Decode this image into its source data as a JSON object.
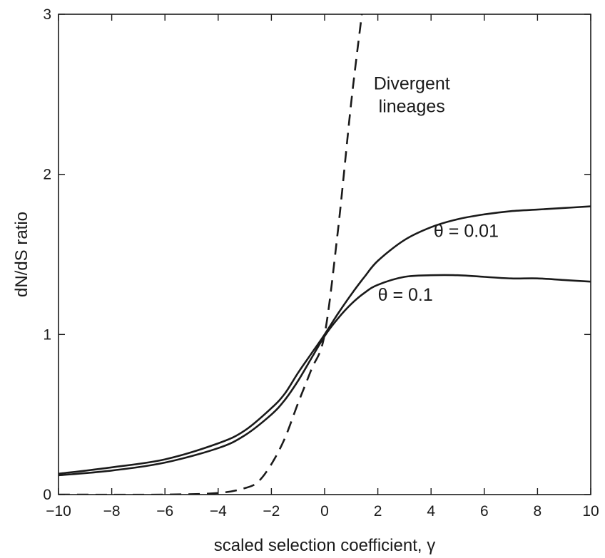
{
  "chart_data": {
    "type": "line",
    "title": "",
    "xlabel": "scaled selection coefficient, γ",
    "ylabel": "dN/dS ratio",
    "xlim": [
      -10,
      10
    ],
    "ylim": [
      0,
      3
    ],
    "xticks": [
      -10,
      -8,
      -6,
      -4,
      -2,
      0,
      2,
      4,
      6,
      8,
      10
    ],
    "yticks": [
      0,
      1,
      2,
      3
    ],
    "xtick_labels": [
      "−10",
      "−8",
      "−6",
      "−4",
      "−2",
      "0",
      "2",
      "4",
      "6",
      "8",
      "10"
    ],
    "ytick_labels": [
      "0",
      "1",
      "2",
      "3"
    ],
    "grid": false,
    "legend": "none",
    "series": [
      {
        "id": "theta-001",
        "style": "solid",
        "color": "#1a1a1a",
        "x": [
          -10,
          -8,
          -6,
          -4,
          -3,
          -2,
          -1.5,
          -1,
          -0.5,
          0,
          0.5,
          1,
          1.5,
          2,
          3,
          4,
          5,
          6,
          7,
          8,
          9,
          10
        ],
        "y": [
          0.13,
          0.17,
          0.22,
          0.32,
          0.4,
          0.54,
          0.63,
          0.76,
          0.88,
          1.0,
          1.13,
          1.25,
          1.36,
          1.46,
          1.59,
          1.67,
          1.72,
          1.75,
          1.77,
          1.78,
          1.79,
          1.8
        ]
      },
      {
        "id": "theta-01",
        "style": "solid",
        "color": "#1a1a1a",
        "x": [
          -10,
          -8,
          -6,
          -4,
          -3,
          -2,
          -1.5,
          -1,
          -0.5,
          0,
          0.5,
          1,
          1.5,
          2,
          3,
          4,
          5,
          6,
          7,
          8,
          9,
          10
        ],
        "y": [
          0.12,
          0.15,
          0.2,
          0.29,
          0.37,
          0.5,
          0.59,
          0.71,
          0.85,
          0.99,
          1.1,
          1.19,
          1.26,
          1.31,
          1.36,
          1.37,
          1.37,
          1.36,
          1.35,
          1.35,
          1.34,
          1.33
        ]
      },
      {
        "id": "divergent",
        "style": "dashed",
        "color": "#1a1a1a",
        "x": [
          -10,
          -6,
          -4,
          -3,
          -2.5,
          -2,
          -1.5,
          -1,
          -0.5,
          0,
          0.5,
          1,
          1.4
        ],
        "y": [
          0.0,
          0.0,
          0.01,
          0.04,
          0.08,
          0.19,
          0.35,
          0.57,
          0.78,
          1.0,
          1.65,
          2.45,
          3.0
        ]
      }
    ],
    "annotations": [
      {
        "id": "theta-001",
        "lines": [
          "θ = 0.01"
        ],
        "x": 4.1,
        "y": 1.61
      },
      {
        "id": "theta-01",
        "lines": [
          "θ = 0.1"
        ],
        "x": 2.0,
        "y": 1.21
      },
      {
        "id": "divergent",
        "lines": [
          "Divergent",
          "lineages"
        ],
        "x": 1.4,
        "y": 2.53
      }
    ]
  }
}
